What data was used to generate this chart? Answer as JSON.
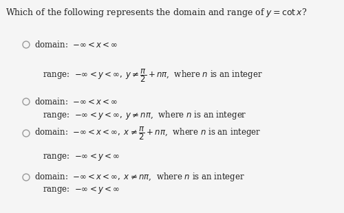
{
  "title": "Which of the following represents the domain and range of $y = \\cot x$?",
  "background_color": "#f5f5f5",
  "options": [
    {
      "domain_line": "domain:  $-\\infty < x < \\infty$",
      "range_line": "range:  $-\\infty < y <\\infty,\\; y \\neq \\dfrac{\\pi}{2}+n\\pi$,  where $n$ is an integer"
    },
    {
      "domain_line": "domain:  $-\\infty < x < \\infty$",
      "range_line": "range:  $-\\infty < y <\\infty,\\; y \\neq n\\pi$,  where $n$ is an integer"
    },
    {
      "domain_line": "domain:  $-\\infty < x <\\infty,\\; x \\neq \\dfrac{\\pi}{2}+n\\pi$,  where $n$ is an integer",
      "range_line": "range:  $-\\infty < y < \\infty$"
    },
    {
      "domain_line": "domain:  $-\\infty < x <\\infty,\\; x \\neq n\\pi$,  where $n$ is an integer",
      "range_line": "range:  $-\\infty < y < \\infty$"
    }
  ],
  "radio_color": "#999999",
  "text_color": "#222222",
  "font_size": 8.5,
  "title_font_size": 9.0,
  "fig_width": 5.0,
  "fig_height": 3.1,
  "dpi": 100
}
